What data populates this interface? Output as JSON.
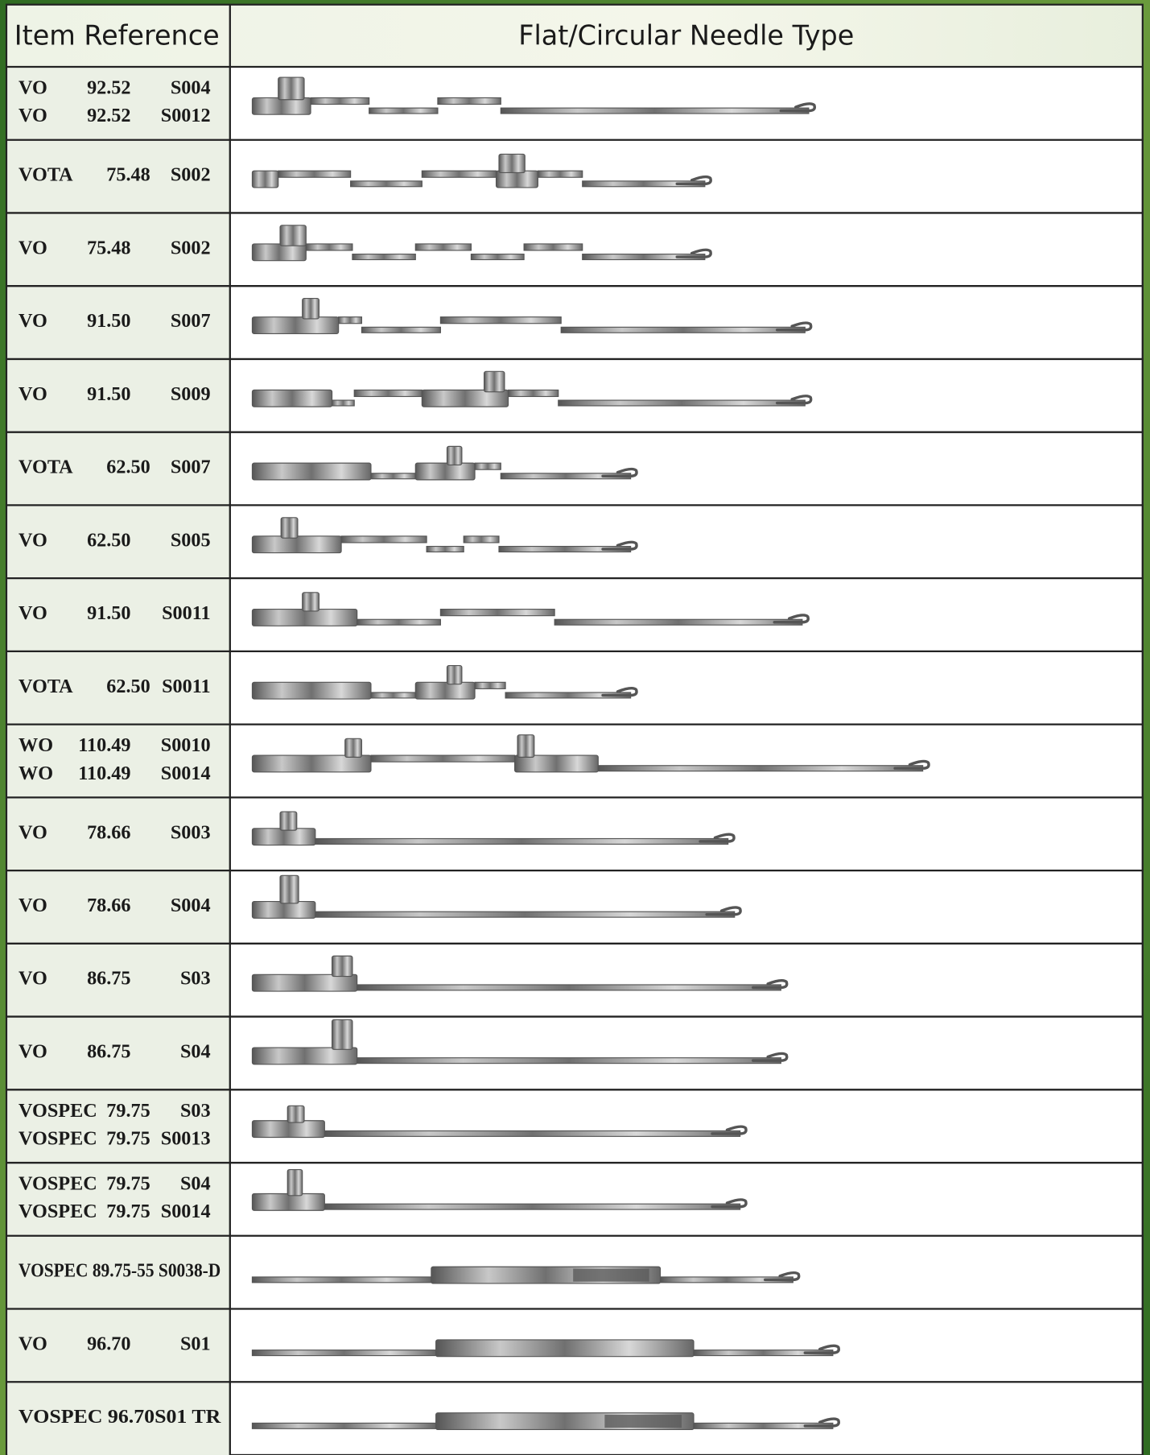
{
  "header": {
    "item_reference": "Item Reference",
    "needle_type": "Flat/Circular Needle Type"
  },
  "rows": [
    {
      "reference": [
        [
          "VO",
          "92.52",
          "S004"
        ],
        [
          "VO",
          "92.52",
          "S0012"
        ]
      ]
    },
    {
      "reference": [
        [
          "VOTA",
          "75.48",
          "S002"
        ]
      ]
    },
    {
      "reference": [
        [
          "VO",
          "75.48",
          "S002"
        ]
      ]
    },
    {
      "reference": [
        [
          "VO",
          "91.50",
          "S007"
        ]
      ]
    },
    {
      "reference": [
        [
          "VO",
          "91.50",
          "S009"
        ]
      ]
    },
    {
      "reference": [
        [
          "VOTA",
          "62.50",
          "S007"
        ]
      ]
    },
    {
      "reference": [
        [
          "VO",
          "62.50",
          "S005"
        ]
      ]
    },
    {
      "reference": [
        [
          "VO",
          "91.50",
          "S0011"
        ]
      ]
    },
    {
      "reference": [
        [
          "VOTA",
          "62.50",
          "S0011"
        ]
      ]
    },
    {
      "reference": [
        [
          "WO",
          "110.49",
          "S0010"
        ],
        [
          "WO",
          "110.49",
          "S0014"
        ]
      ]
    },
    {
      "reference": [
        [
          "VO",
          "78.66",
          "S003"
        ]
      ]
    },
    {
      "reference": [
        [
          "VO",
          "78.66",
          "S004"
        ]
      ]
    },
    {
      "reference": [
        [
          "VO",
          "86.75",
          "S03"
        ]
      ]
    },
    {
      "reference": [
        [
          "VO",
          "86.75",
          "S04"
        ]
      ]
    },
    {
      "reference": [
        [
          "VOSPEC",
          "79.75",
          "S03"
        ],
        [
          "VOSPEC",
          "79.75",
          "S0013"
        ]
      ]
    },
    {
      "reference": [
        [
          "VOSPEC",
          "79.75",
          "S04"
        ],
        [
          "VOSPEC",
          "79.75",
          "S0014"
        ]
      ]
    },
    {
      "reference": [
        [
          "VOSPEC 89.75-55 S0038-D"
        ]
      ]
    },
    {
      "reference": [
        [
          "VO",
          "96.70",
          "S01"
        ]
      ]
    },
    {
      "reference": [
        [
          "VOSPEC 96.70S01 TR"
        ]
      ]
    }
  ]
}
